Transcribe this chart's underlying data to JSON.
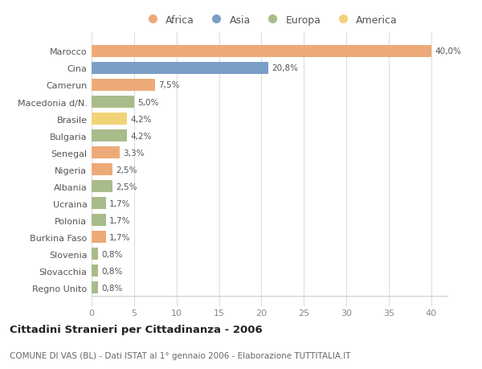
{
  "categories": [
    "Marocco",
    "Cina",
    "Camerun",
    "Macedonia d/N.",
    "Brasile",
    "Bulgaria",
    "Senegal",
    "Nigeria",
    "Albania",
    "Ucraina",
    "Polonia",
    "Burkina Faso",
    "Slovenia",
    "Slovacchia",
    "Regno Unito"
  ],
  "values": [
    40.0,
    20.8,
    7.5,
    5.0,
    4.2,
    4.2,
    3.3,
    2.5,
    2.5,
    1.7,
    1.7,
    1.7,
    0.8,
    0.8,
    0.8
  ],
  "labels": [
    "40,0%",
    "20,8%",
    "7,5%",
    "5,0%",
    "4,2%",
    "4,2%",
    "3,3%",
    "2,5%",
    "2,5%",
    "1,7%",
    "1,7%",
    "1,7%",
    "0,8%",
    "0,8%",
    "0,8%"
  ],
  "continents": [
    "Africa",
    "Asia",
    "Africa",
    "Europa",
    "America",
    "Europa",
    "Africa",
    "Africa",
    "Europa",
    "Europa",
    "Europa",
    "Africa",
    "Europa",
    "Europa",
    "Europa"
  ],
  "colors": {
    "Africa": "#EDAA78",
    "Asia": "#7B9EC7",
    "Europa": "#A8BC8A",
    "America": "#F2D478"
  },
  "legend_order": [
    "Africa",
    "Asia",
    "Europa",
    "America"
  ],
  "xlim": [
    0,
    42
  ],
  "xticks": [
    0,
    5,
    10,
    15,
    20,
    25,
    30,
    35,
    40
  ],
  "title": "Cittadini Stranieri per Cittadinanza - 2006",
  "subtitle": "COMUNE DI VAS (BL) - Dati ISTAT al 1° gennaio 2006 - Elaborazione TUTTITALIA.IT",
  "bg_color": "#ffffff",
  "plot_bg_color": "#ffffff",
  "grid_color": "#dddddd",
  "bar_height": 0.72
}
